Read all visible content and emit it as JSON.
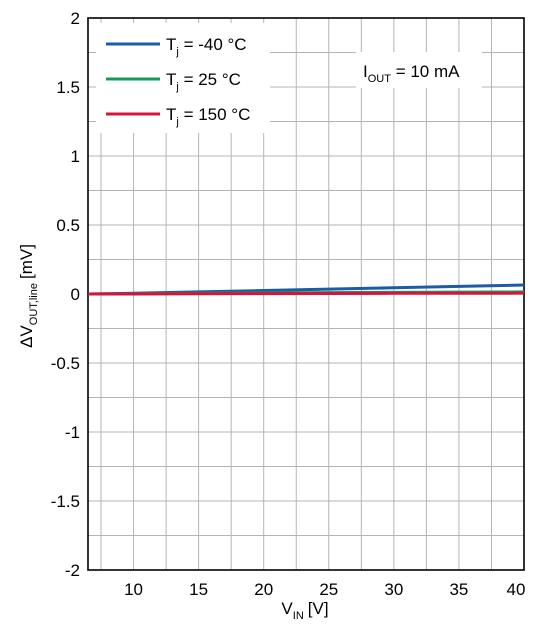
{
  "chart_data": {
    "type": "line",
    "x_label": {
      "main": "V",
      "sub": "IN",
      "unit": "[V]"
    },
    "y_label": {
      "prefix": "ΔV",
      "sub": "OUT,line",
      "unit": "[mV]"
    },
    "xlim": [
      6.5,
      40
    ],
    "ylim": [
      -2,
      2
    ],
    "x_ticks": [
      10,
      15,
      20,
      25,
      30,
      35,
      40
    ],
    "x_tick_labels": [
      "10",
      "15",
      "20",
      "25",
      "30",
      "35",
      "40"
    ],
    "y_ticks": [
      2,
      1.5,
      1,
      0.5,
      0,
      -0.5,
      -1,
      -1.5,
      -2
    ],
    "y_tick_labels": [
      "2",
      "1.5",
      "1",
      "0.5",
      "0",
      "-0.5",
      "-1",
      "-1.5",
      "-2"
    ],
    "grid": true,
    "legend_position": "top-left",
    "annotation": {
      "main": "I",
      "sub": "OUT",
      "rest": " = 10 mA"
    },
    "series": [
      {
        "name": "Tj = -40 °C",
        "legend": {
          "main": "T",
          "sub": "j",
          "rest": " = -40 °C"
        },
        "color": "#1f5aa6",
        "x": [
          6.5,
          10,
          15,
          20,
          25,
          30,
          35,
          40
        ],
        "values": [
          0.0,
          0.005,
          0.015,
          0.025,
          0.035,
          0.045,
          0.055,
          0.065
        ]
      },
      {
        "name": "Tj = 25 °C",
        "legend": {
          "main": "T",
          "sub": "j",
          "rest": " = 25 °C"
        },
        "color": "#159a5b",
        "x": [
          6.5,
          10,
          15,
          20,
          25,
          30,
          35,
          40
        ],
        "values": [
          0.0,
          0.002,
          0.005,
          0.008,
          0.01,
          0.012,
          0.014,
          0.015
        ]
      },
      {
        "name": "Tj = 150 °C",
        "legend": {
          "main": "T",
          "sub": "j",
          "rest": " = 150 °C"
        },
        "color": "#d4143c",
        "x": [
          6.5,
          10,
          15,
          20,
          25,
          30,
          35,
          40
        ],
        "values": [
          0.0,
          0.0,
          0.002,
          0.003,
          0.004,
          0.005,
          0.005,
          0.006
        ]
      }
    ]
  }
}
